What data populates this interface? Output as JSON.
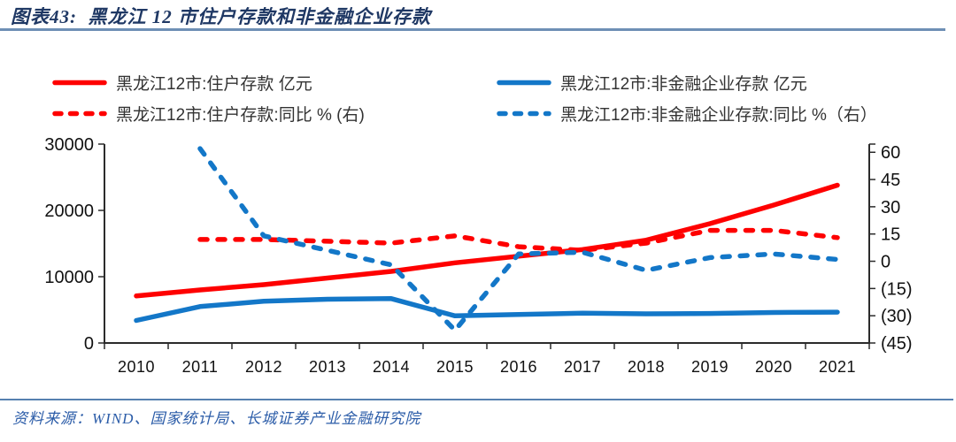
{
  "header": {
    "figure_label_and_title": "图表43:  黑龙江 12 市住户存款和非金融企业存款"
  },
  "footer": {
    "source": "资料来源：WIND、国家统计局、长城证券产业金融研究院"
  },
  "colors": {
    "series_red": "#FE0000",
    "series_blue": "#1377C8",
    "title_navy": "#1F3864",
    "footer_blue": "#2B5CA8",
    "divider_steel_blue": "#6E8FB5",
    "negative_tick_red": "#F00000",
    "axis_black": "#2B2B2B"
  },
  "chart_data": {
    "type": "line",
    "title": "黑龙江 12 市住户存款和非金融企业存款",
    "grid": false,
    "legend_position": "top",
    "categories": [
      "2010",
      "2011",
      "2012",
      "2013",
      "2014",
      "2015",
      "2016",
      "2017",
      "2018",
      "2019",
      "2020",
      "2021"
    ],
    "series": [
      {
        "name": "黑龙江12市:住户存款 亿元",
        "axis": "left",
        "line_style": "solid",
        "color": "#FE0000",
        "values": [
          7100,
          8000,
          8800,
          9800,
          10800,
          12100,
          13100,
          14100,
          15500,
          18000,
          20800,
          23800
        ]
      },
      {
        "name": "黑龙江12市:非金融企业存款 亿元",
        "axis": "left",
        "line_style": "solid",
        "color": "#1377C8",
        "values": [
          3400,
          5500,
          6300,
          6600,
          6700,
          4100,
          4300,
          4500,
          4400,
          4450,
          4600,
          4650
        ]
      },
      {
        "name": "黑龙江12市:住户存款:同比 % (右)",
        "axis": "right",
        "line_style": "dashed",
        "color": "#FE0000",
        "values": [
          null,
          12,
          12,
          11,
          10,
          14,
          8,
          6,
          10,
          17,
          17,
          13
        ]
      },
      {
        "name": "黑龙江12市:非金融企业存款:同比 %（右）",
        "axis": "right",
        "line_style": "dashed",
        "color": "#1377C8",
        "values": [
          null,
          62,
          14,
          6,
          -2,
          -38,
          4,
          5,
          -5,
          2,
          4,
          1
        ]
      }
    ],
    "left_axis": {
      "min": 0,
      "max": 30000,
      "ticks": [
        30000,
        20000,
        10000,
        0
      ]
    },
    "right_axis": {
      "min": -45,
      "max": 64.5,
      "ticks": [
        60,
        45,
        30,
        15,
        0,
        -15,
        -30,
        -45
      ],
      "negative_format": "parentheses_red"
    }
  }
}
